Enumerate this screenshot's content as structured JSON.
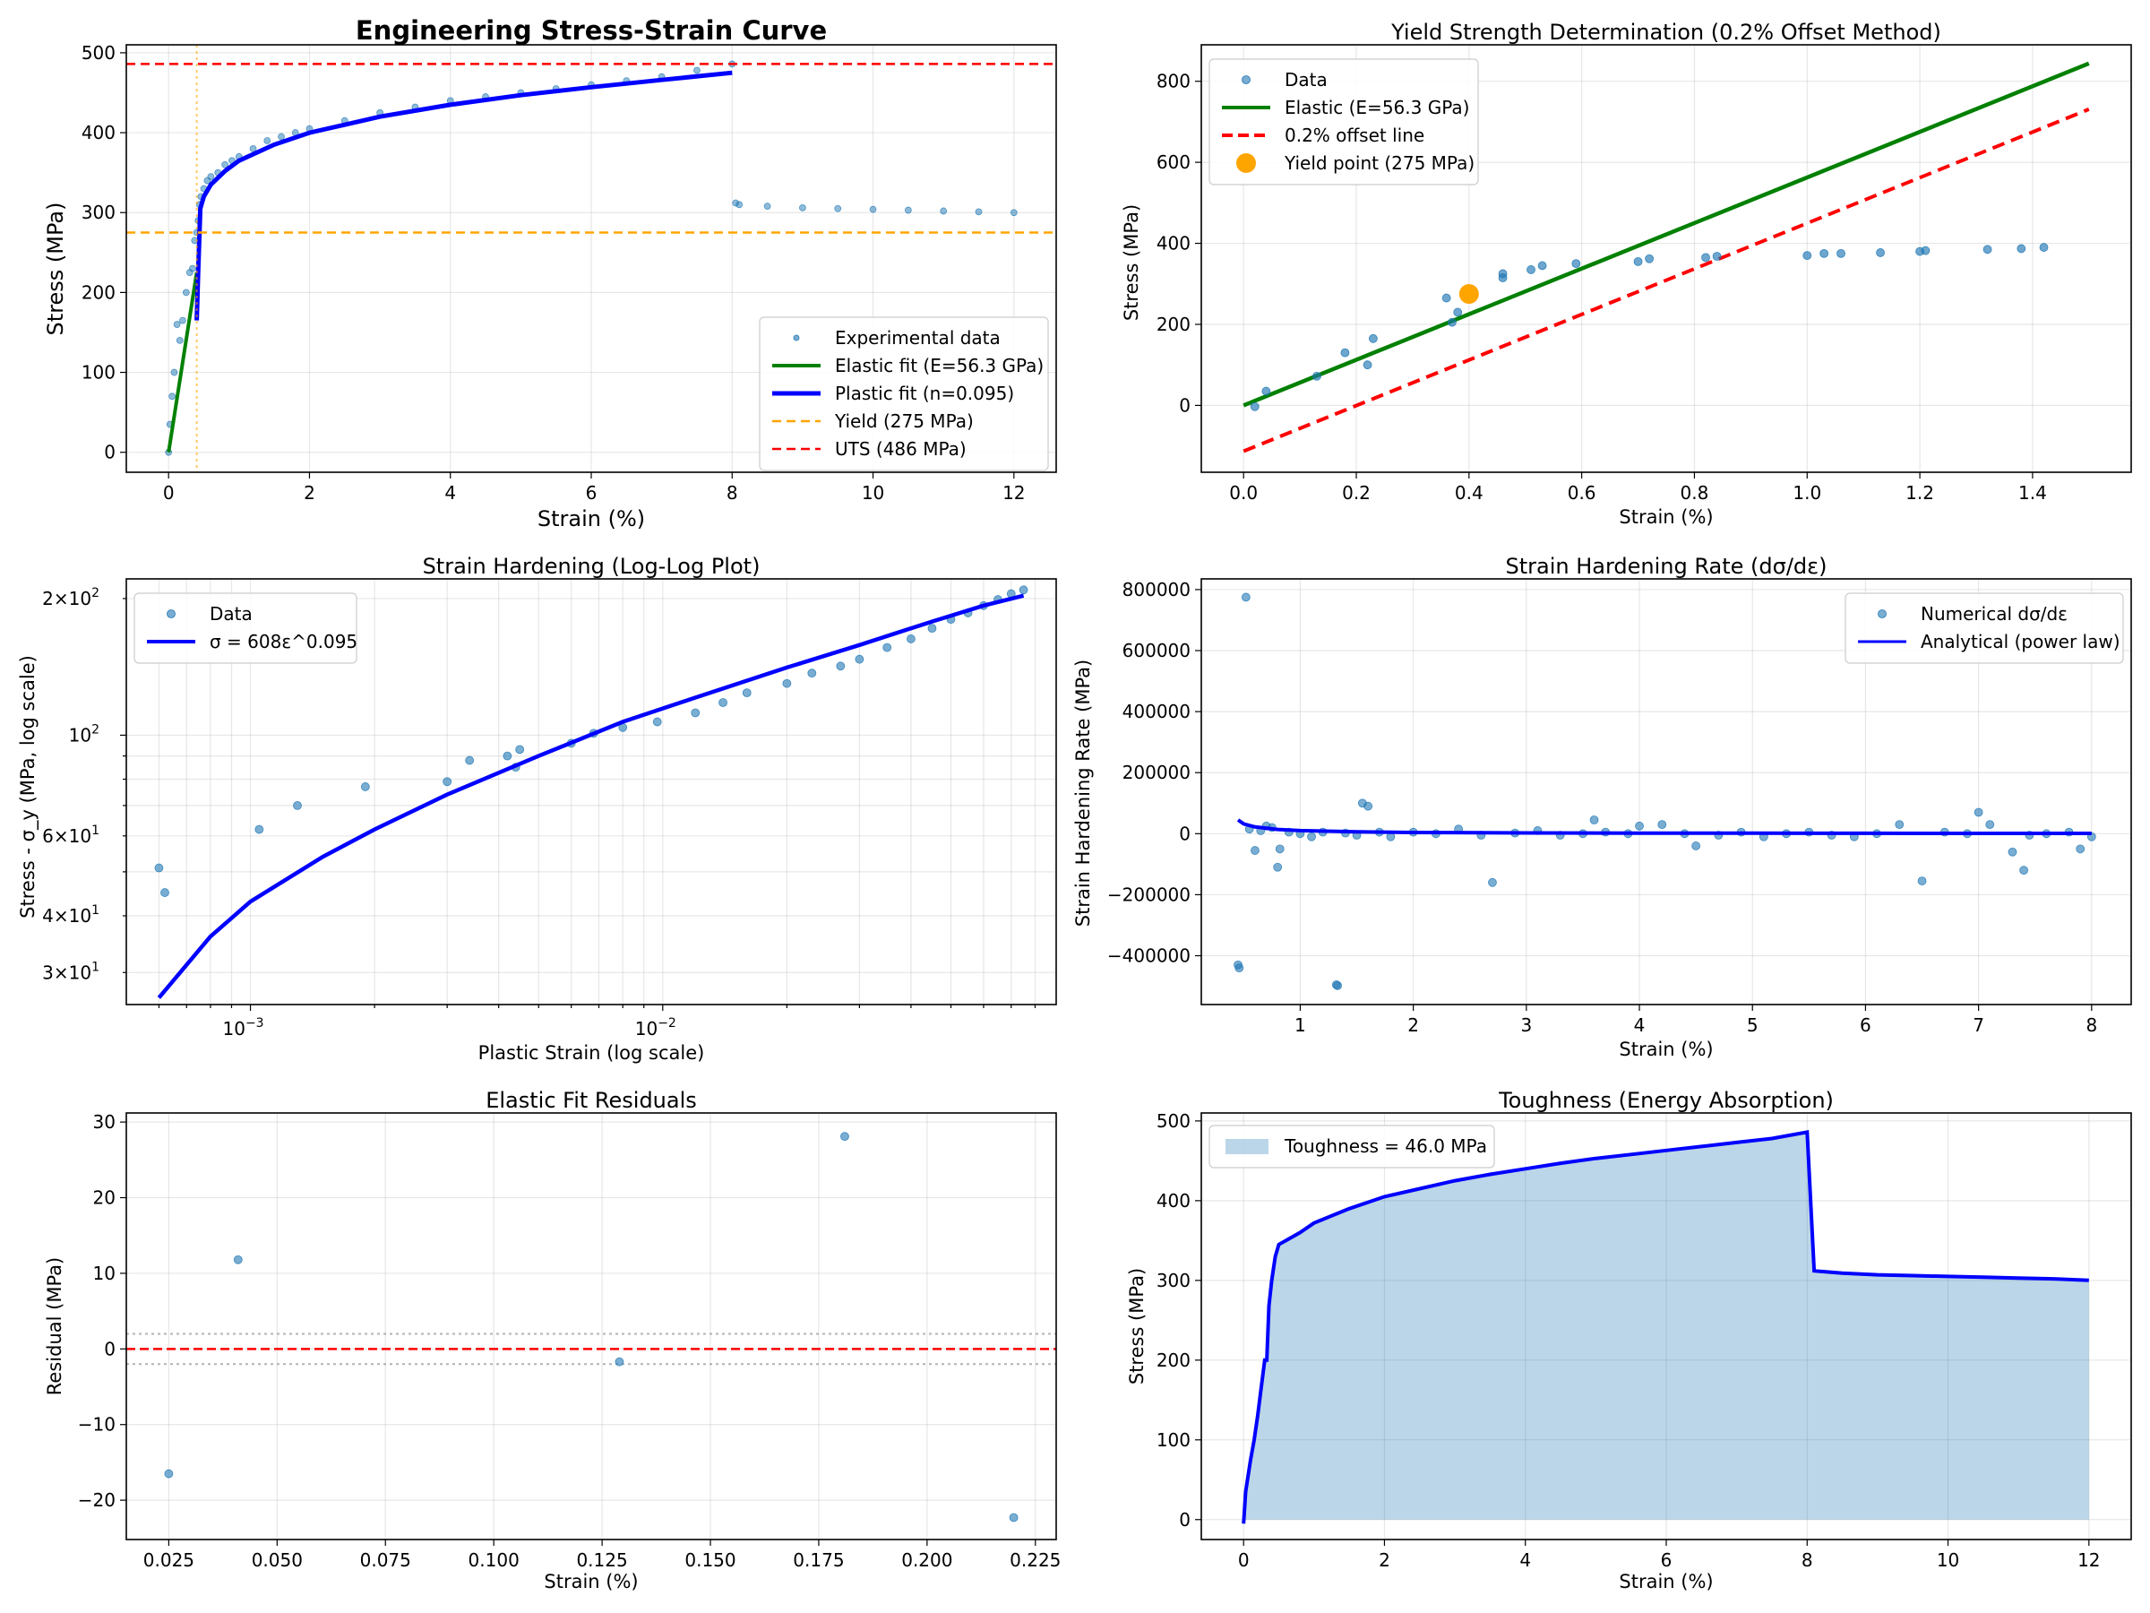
{
  "chart_data": [
    {
      "id": "p1",
      "type": "scatter",
      "title": "Engineering Stress-Strain Curve",
      "xlabel": "Strain (%)",
      "ylabel": "Stress (MPa)",
      "xlim": [
        -0.6,
        12.6
      ],
      "ylim": [
        -25,
        510
      ],
      "xticks": [
        0,
        2,
        4,
        6,
        8,
        10,
        12
      ],
      "yticks": [
        0,
        100,
        200,
        300,
        400,
        500
      ],
      "legend_position": "lower right",
      "series": [
        {
          "name": "Experimental data",
          "kind": "scatter",
          "color": "#1f77b4",
          "x": [
            0.0,
            0.02,
            0.05,
            0.08,
            0.12,
            0.16,
            0.2,
            0.25,
            0.3,
            0.34,
            0.37,
            0.4,
            0.42,
            0.44,
            0.46,
            0.5,
            0.55,
            0.6,
            0.7,
            0.8,
            0.9,
            1.0,
            1.2,
            1.4,
            1.6,
            1.8,
            2.0,
            2.5,
            3.0,
            3.5,
            4.0,
            4.5,
            5.0,
            5.5,
            6.0,
            6.5,
            7.0,
            7.5,
            8.0,
            8.05,
            8.1,
            8.5,
            9.0,
            9.5,
            10.0,
            10.5,
            11.0,
            11.5,
            12.0
          ],
          "y": [
            0,
            35,
            70,
            100,
            160,
            140,
            165,
            200,
            225,
            230,
            265,
            275,
            290,
            310,
            320,
            330,
            340,
            345,
            350,
            360,
            365,
            370,
            380,
            390,
            395,
            400,
            405,
            415,
            425,
            432,
            440,
            445,
            450,
            455,
            460,
            465,
            470,
            478,
            486,
            312,
            310,
            308,
            306,
            305,
            304,
            303,
            302,
            301,
            300
          ]
        },
        {
          "name": "Elastic fit (E=56.3 GPa)",
          "kind": "line",
          "color": "#008000",
          "x": [
            0,
            0.4
          ],
          "y": [
            0,
            225
          ]
        },
        {
          "name": "Plastic fit (n=0.095)",
          "kind": "line",
          "color": "#0000ff",
          "x": [
            0.4,
            0.42,
            0.45,
            0.5,
            0.6,
            0.8,
            1.0,
            1.5,
            2.0,
            3.0,
            4.0,
            5.0,
            6.0,
            7.0,
            8.0
          ],
          "y": [
            165,
            225,
            305,
            320,
            335,
            352,
            365,
            385,
            400,
            420,
            435,
            447,
            457,
            466,
            475
          ]
        },
        {
          "name": "Yield (275 MPa)",
          "kind": "hline",
          "value": 275,
          "color": "#ffa500"
        },
        {
          "name": "UTS (486 MPa)",
          "kind": "hline",
          "value": 486,
          "color": "#ff0000"
        }
      ],
      "annotations": [
        {
          "kind": "vline",
          "value": 0.4,
          "color": "#ffa500"
        }
      ]
    },
    {
      "id": "p2",
      "type": "scatter",
      "title": "Yield Strength Determination (0.2% Offset Method)",
      "xlabel": "Strain (%)",
      "ylabel": "Stress (MPa)",
      "xlim": [
        -0.075,
        1.575
      ],
      "ylim": [
        -165,
        890
      ],
      "xticks": [
        0.0,
        0.2,
        0.4,
        0.6,
        0.8,
        1.0,
        1.2,
        1.4
      ],
      "yticks": [
        0,
        200,
        400,
        600,
        800
      ],
      "legend_position": "upper left",
      "series": [
        {
          "name": "Data",
          "kind": "scatter",
          "color": "#1f77b4",
          "x": [
            0.02,
            0.04,
            0.13,
            0.18,
            0.22,
            0.23,
            0.36,
            0.37,
            0.38,
            0.46,
            0.46,
            0.51,
            0.53,
            0.59,
            0.7,
            0.72,
            0.82,
            0.84,
            1.0,
            1.03,
            1.06,
            1.13,
            1.2,
            1.21,
            1.32,
            1.38,
            1.42
          ],
          "y": [
            -3,
            35,
            72,
            130,
            100,
            165,
            265,
            205,
            230,
            325,
            315,
            335,
            345,
            350,
            355,
            362,
            365,
            368,
            370,
            375,
            375,
            377,
            380,
            382,
            385,
            387,
            390
          ]
        },
        {
          "name": "Elastic (E=56.3 GPa)",
          "kind": "line",
          "color": "#008000",
          "x": [
            0,
            1.5
          ],
          "y": [
            0,
            844
          ]
        },
        {
          "name": "0.2% offset line",
          "kind": "line",
          "color": "#ff0000",
          "x": [
            0,
            1.5
          ],
          "y": [
            -113,
            731
          ]
        },
        {
          "name": "Yield point (275 MPa)",
          "kind": "point",
          "color": "#ffa500",
          "x": [
            0.4
          ],
          "y": [
            275
          ]
        }
      ]
    },
    {
      "id": "p3",
      "type": "line",
      "title": "Strain Hardening (Log-Log Plot)",
      "xlabel": "Plastic Strain (log scale)",
      "ylabel": "Stress - σ_y (MPa, log scale)",
      "xscale": "log",
      "yscale": "log",
      "xlim": [
        0.0005,
        0.09
      ],
      "ylim": [
        25.5,
        221
      ],
      "xticks_major": [
        0.001,
        0.01
      ],
      "xticklabels": [
        "10^-3",
        "10^-2"
      ],
      "yticks_major": [
        30,
        40,
        60,
        100,
        200
      ],
      "yticklabels": [
        "3×10^1",
        "4×10^1",
        "6×10^1",
        "10^2",
        "2×10^2"
      ],
      "legend_position": "upper left",
      "series": [
        {
          "name": "Data",
          "kind": "scatter",
          "color": "#1f77b4",
          "x": [
            0.0006,
            0.00062,
            0.00105,
            0.0013,
            0.0019,
            0.003,
            0.0034,
            0.0042,
            0.0045,
            0.0044,
            0.006,
            0.0068,
            0.008,
            0.0097,
            0.012,
            0.014,
            0.016,
            0.02,
            0.023,
            0.027,
            0.03,
            0.035,
            0.04,
            0.045,
            0.05,
            0.055,
            0.06,
            0.065,
            0.07,
            0.075
          ],
          "y": [
            51,
            45,
            62,
            70,
            77,
            79,
            88,
            90,
            93,
            85,
            96,
            101,
            104,
            107,
            112,
            118,
            124,
            130,
            137,
            142,
            147,
            156,
            163,
            172,
            180,
            186,
            193,
            199,
            205,
            209
          ]
        },
        {
          "name": "σ = 608ε^0.095",
          "kind": "line",
          "color": "#0000ff",
          "x": [
            0.0006,
            0.0008,
            0.001,
            0.0015,
            0.002,
            0.003,
            0.005,
            0.008,
            0.012,
            0.02,
            0.03,
            0.045,
            0.06,
            0.075
          ],
          "y": [
            26.4,
            36,
            43,
            54,
            62,
            74,
            90,
            107,
            121,
            141,
            158,
            178,
            193,
            203
          ]
        }
      ]
    },
    {
      "id": "p4",
      "type": "scatter",
      "title": "Strain Hardening Rate (dσ/dε)",
      "xlabel": "Strain (%)",
      "ylabel": "Strain Hardening Rate (MPa)",
      "xlim": [
        0.125,
        8.35
      ],
      "ylim": [
        -560000,
        835000
      ],
      "xticks": [
        1,
        2,
        3,
        4,
        5,
        6,
        7,
        8
      ],
      "yticks": [
        -400000,
        -200000,
        0,
        200000,
        400000,
        600000,
        800000
      ],
      "legend_position": "upper right",
      "series": [
        {
          "name": "Numerical dσ/dε",
          "kind": "scatter",
          "color": "#1f77b4",
          "x": [
            0.45,
            0.46,
            0.52,
            0.55,
            0.6,
            0.65,
            0.7,
            0.75,
            0.8,
            0.82,
            0.9,
            1.0,
            1.1,
            1.2,
            1.32,
            1.33,
            1.4,
            1.5,
            1.55,
            1.6,
            1.7,
            1.8,
            2.0,
            2.2,
            2.4,
            2.6,
            2.7,
            2.9,
            3.1,
            3.3,
            3.5,
            3.6,
            3.7,
            3.9,
            4.0,
            4.2,
            4.4,
            4.5,
            4.7,
            4.9,
            5.1,
            5.3,
            5.5,
            5.7,
            5.9,
            6.1,
            6.3,
            6.5,
            6.7,
            6.9,
            7.0,
            7.1,
            7.3,
            7.4,
            7.45,
            7.6,
            7.8,
            7.9,
            8.0
          ],
          "y": [
            -430000,
            -440000,
            775000,
            15000,
            -55000,
            10000,
            25000,
            20000,
            -110000,
            -50000,
            5000,
            0,
            -10000,
            5000,
            -495000,
            -498000,
            2000,
            -5000,
            100000,
            90000,
            5000,
            -10000,
            5000,
            0,
            15000,
            -5000,
            -160000,
            2000,
            10000,
            -5000,
            0,
            45000,
            5000,
            0,
            25000,
            30000,
            0,
            -40000,
            -5000,
            5000,
            -10000,
            0,
            5000,
            -5000,
            -10000,
            0,
            30000,
            -155000,
            5000,
            0,
            70000,
            30000,
            -60000,
            -120000,
            -5000,
            0,
            5000,
            -50000,
            -10000
          ]
        },
        {
          "name": "Analytical (power law)",
          "kind": "line",
          "color": "#0000ff",
          "x": [
            0.45,
            0.5,
            0.6,
            0.8,
            1.0,
            1.5,
            2.0,
            3.0,
            4.0,
            5.0,
            6.0,
            7.0,
            8.0
          ],
          "y": [
            45000,
            32000,
            22000,
            14000,
            10000,
            6000,
            4000,
            2500,
            1800,
            1400,
            1100,
            900,
            800
          ]
        }
      ]
    },
    {
      "id": "p5",
      "type": "scatter",
      "title": "Elastic Fit Residuals",
      "xlabel": "Strain (%)",
      "ylabel": "Residual (MPa)",
      "xlim": [
        0.0152,
        0.2298
      ],
      "ylim": [
        -25.2,
        31.2
      ],
      "xticks": [
        0.025,
        0.05,
        0.075,
        0.1,
        0.125,
        0.15,
        0.175,
        0.2,
        0.225
      ],
      "xticklabels": [
        "0.025",
        "0.050",
        "0.075",
        "0.100",
        "0.125",
        "0.150",
        "0.175",
        "0.200",
        "0.225"
      ],
      "yticks": [
        -20,
        -10,
        0,
        10,
        20,
        30
      ],
      "series": [
        {
          "name": "residuals",
          "kind": "scatter",
          "color": "#1f77b4",
          "x": [
            0.025,
            0.041,
            0.129,
            0.181,
            0.22
          ],
          "y": [
            -16.5,
            11.8,
            -1.7,
            28.1,
            -22.3
          ]
        },
        {
          "name": "zero",
          "kind": "hline",
          "value": 0,
          "color": "#ff0000"
        },
        {
          "name": "band",
          "kind": "hlines_dotted",
          "values": [
            2,
            -2
          ],
          "color": "#808080"
        }
      ]
    },
    {
      "id": "p6",
      "type": "area",
      "title": "Toughness (Energy Absorption)",
      "xlabel": "Strain (%)",
      "ylabel": "Stress (MPa)",
      "xlim": [
        -0.6,
        12.6
      ],
      "ylim": [
        -25,
        510
      ],
      "xticks": [
        0,
        2,
        4,
        6,
        8,
        10,
        12
      ],
      "yticks": [
        0,
        100,
        200,
        300,
        400,
        500
      ],
      "legend_position": "upper left",
      "series": [
        {
          "name": "Toughness = 46.0 MPa",
          "kind": "area",
          "color": "#1f77b4",
          "x": [
            0.0,
            0.03,
            0.1,
            0.15,
            0.2,
            0.25,
            0.3,
            0.33,
            0.36,
            0.4,
            0.45,
            0.5,
            0.6,
            0.8,
            1.0,
            1.5,
            2.0,
            2.5,
            3.0,
            3.5,
            4.0,
            4.5,
            5.0,
            5.5,
            6.0,
            6.5,
            7.0,
            7.5,
            8.0,
            8.1,
            8.5,
            9.0,
            9.5,
            10.0,
            10.5,
            11.0,
            11.5,
            12.0
          ],
          "y": [
            -5,
            35,
            75,
            100,
            130,
            165,
            200,
            200,
            268,
            300,
            330,
            345,
            350,
            360,
            372,
            390,
            405,
            415,
            425,
            433,
            440,
            447,
            453,
            458,
            463,
            468,
            473,
            478,
            486,
            312,
            309,
            307,
            306,
            305,
            304,
            303,
            302,
            300
          ]
        }
      ]
    }
  ]
}
